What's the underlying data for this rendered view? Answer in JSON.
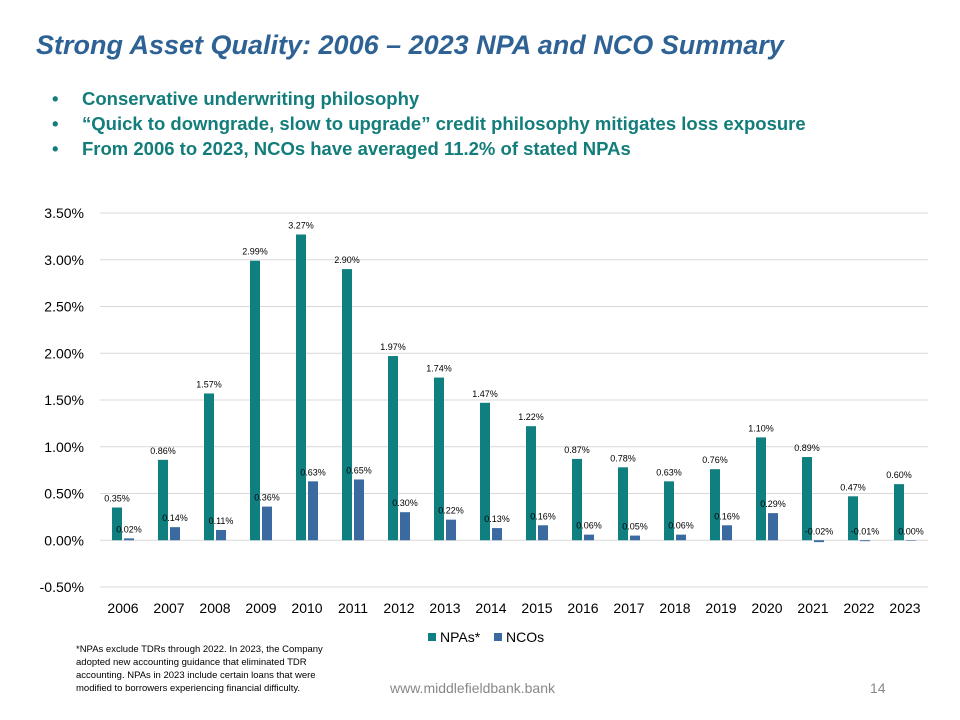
{
  "slide": {
    "title": "Strong Asset Quality: 2006 – 2023 NPA and NCO Summary",
    "bullets": [
      "Conservative underwriting philosophy",
      "“Quick to downgrade, slow to upgrade” credit philosophy mitigates loss exposure",
      "From 2006 to 2023, NCOs have averaged 11.2% of stated NPAs"
    ],
    "footnote": "*NPAs exclude TDRs through 2022. In 2023, the Company adopted new accounting guidance that eliminated TDR accounting. NPAs in 2023 include certain loans that were modified to borrowers experiencing financial difficulty.",
    "url": "www.middlefieldbank.bank",
    "page_number": "14"
  },
  "chart_data": {
    "type": "bar",
    "title": "",
    "xlabel": "",
    "ylabel": "",
    "categories": [
      "2006",
      "2007",
      "2008",
      "2009",
      "2010",
      "2011",
      "2012",
      "2013",
      "2014",
      "2015",
      "2016",
      "2017",
      "2018",
      "2019",
      "2020",
      "2021",
      "2022",
      "2023"
    ],
    "series": [
      {
        "name": "NPAs*",
        "color": "#0f7f7f",
        "values": [
          0.35,
          0.86,
          1.57,
          2.99,
          3.27,
          2.9,
          1.97,
          1.74,
          1.47,
          1.22,
          0.87,
          0.78,
          0.63,
          0.76,
          1.1,
          0.89,
          0.47,
          0.6
        ]
      },
      {
        "name": "NCOs",
        "color": "#3a6aa0",
        "values": [
          0.02,
          0.14,
          0.11,
          0.36,
          0.63,
          0.65,
          0.3,
          0.22,
          0.13,
          0.16,
          0.06,
          0.05,
          0.06,
          0.16,
          0.29,
          -0.02,
          -0.01,
          0.0
        ]
      }
    ],
    "ylim": [
      -0.5,
      3.5
    ],
    "yticks": [
      "3.50%",
      "3.00%",
      "2.50%",
      "2.00%",
      "1.50%",
      "1.00%",
      "0.50%",
      "0.00%",
      "-0.50%"
    ],
    "grid": true,
    "legend": "bottom",
    "unit": "%"
  }
}
